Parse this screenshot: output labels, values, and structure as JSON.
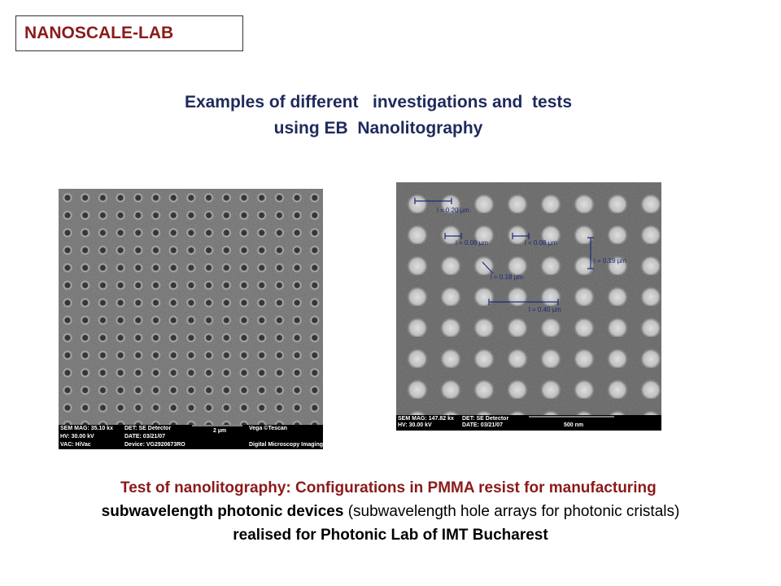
{
  "header": {
    "label": "NANOSCALE-LAB"
  },
  "title": {
    "lines": [
      "Examples of different   investigations and  tests",
      "using EB  Nanolitography"
    ]
  },
  "images": [
    {
      "info": [
        "SEM MAG: 35.10 kx",
        "DET: SE Detector",
        "2 µm",
        "Vega ©Tescan",
        "HV: 30.00 kV",
        "DATE: 03/21/07",
        "VAC: HiVac",
        "Device: VG2920673RO",
        "Digital Microscopy Imaging"
      ]
    },
    {
      "info": [
        "SEM MAG: 147.82 kx",
        "DET: SE Detector",
        "HV: 30.00 kV",
        "DATE: 03/21/07",
        "500 nm"
      ],
      "measurements": [
        "l = 0.20 µm",
        "l = 0.09 µm",
        "l = 0.08 µm",
        "l = 0.19 µm",
        "l = 0.18 µm",
        "l = 0.40 µm"
      ]
    }
  ],
  "caption": {
    "segments": [
      "Test of nanolitography: Configurations in PMMA resist for manufacturing",
      "subwavelength photonic devices",
      "(subwavelength hole arrays for photonic cristals)",
      "realised for Photonic Lab of IMT Bucharest"
    ]
  }
}
